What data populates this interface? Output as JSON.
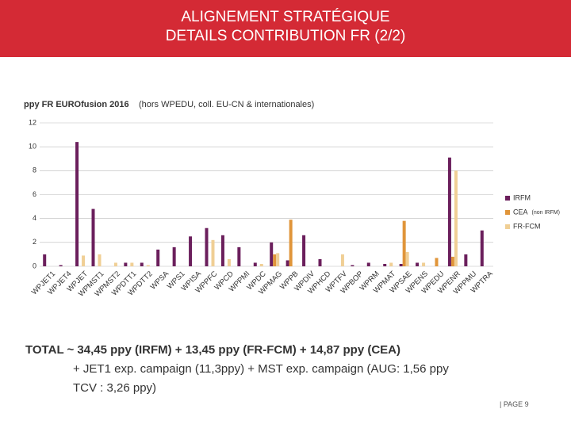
{
  "header": {
    "title": [
      "ALIGNEMENT STRATÉGIQUE",
      "DETAILS CONTRIBUTION FR (2/2)"
    ]
  },
  "chart_data": {
    "type": "bar",
    "title": "ppy FR EUROfusion 2016",
    "subtitle": "(hors WPEDU, coll. EU-CN & internationales)",
    "categories": [
      "WPJET1",
      "WPJET4",
      "WPJET",
      "WPMST1",
      "WPMST2",
      "WPDTT1",
      "WPDTT2",
      "WPSA",
      "WPS1",
      "WPISA",
      "WPPFC",
      "WPCD",
      "WPPMI",
      "WPDC",
      "WPMAG",
      "WPPB",
      "WPDIV",
      "WPHCD",
      "WPTFV",
      "WPBOP",
      "WPRM",
      "WPMAT",
      "WPSAE",
      "WPENS",
      "WPEDU",
      "WPENR",
      "WPPMU",
      "WPTRA"
    ],
    "series": [
      {
        "name": "IRFM",
        "color": "#6b1f5c",
        "values": [
          1.0,
          0.1,
          10.4,
          4.8,
          0,
          0.3,
          0.3,
          1.4,
          1.6,
          2.5,
          3.2,
          2.6,
          1.6,
          0.3,
          2.0,
          0.5,
          2.6,
          0.6,
          0,
          0.1,
          0.3,
          0.2,
          0.2,
          0.3,
          0,
          9.1,
          1.0,
          3.0
        ]
      },
      {
        "name": "CEA",
        "note": "(non IRFM)",
        "color": "#e0953a",
        "values": [
          0,
          0,
          0,
          0,
          0,
          0,
          0,
          0,
          0,
          0,
          0,
          0,
          0,
          0,
          1.0,
          3.9,
          0,
          0,
          0,
          0,
          0,
          0,
          3.8,
          0,
          0.7,
          0.8,
          0,
          0
        ]
      },
      {
        "name": "FR-FCM",
        "color": "#f0cf95",
        "values": [
          0,
          0,
          0.9,
          1.0,
          0.3,
          0.3,
          0.1,
          0,
          0,
          0,
          2.2,
          0.6,
          0,
          0.2,
          1.1,
          0,
          0,
          0,
          1.0,
          0,
          0,
          0.3,
          1.2,
          0.3,
          0,
          8.0,
          0,
          0
        ]
      }
    ],
    "ylim": [
      0,
      12
    ],
    "yticks": [
      0,
      2,
      4,
      6,
      8,
      10,
      12
    ],
    "grid": true
  },
  "totals": [
    "TOTAL ~ 34,45 ppy (IRFM) + 13,45 ppy (FR-FCM) + 14,87 ppy (CEA)",
    "+ JET1 exp. campaign (11,3ppy) + MST exp. campaign (AUG: 1,56 ppy",
    "TCV : 3,26 ppy)"
  ],
  "footer": "| PAGE 9"
}
